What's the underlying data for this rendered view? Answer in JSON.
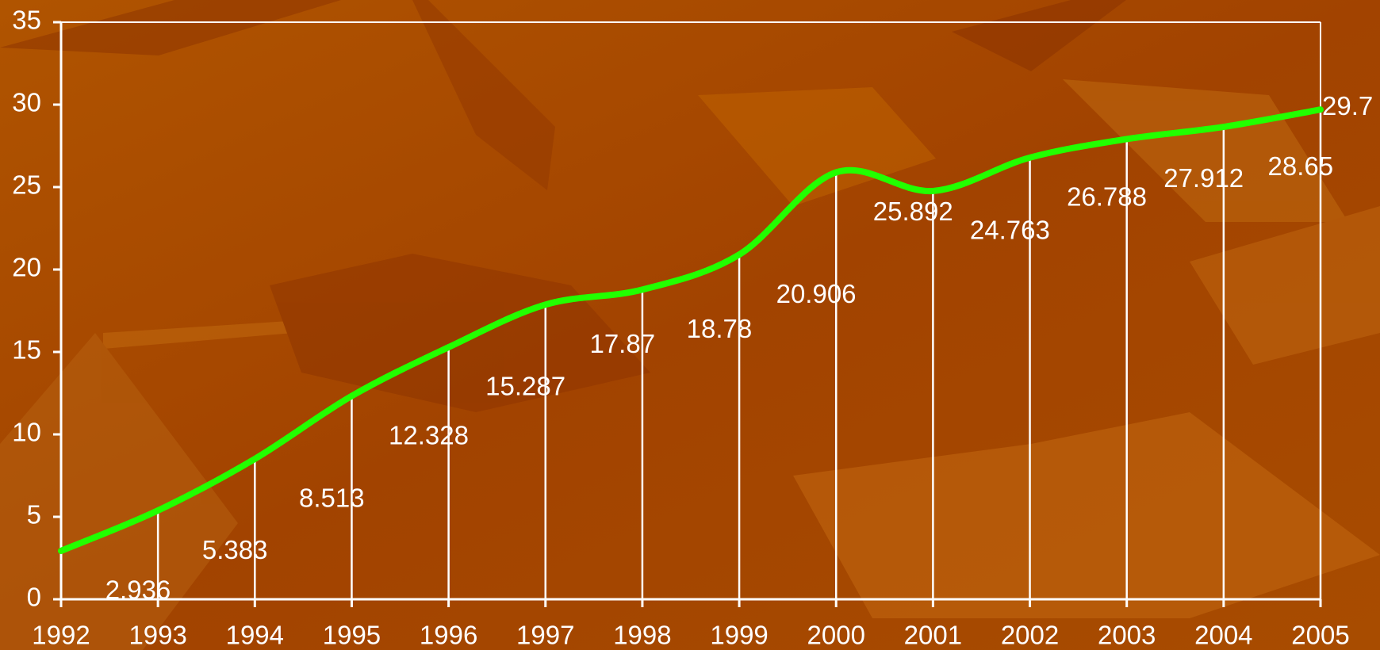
{
  "chart_data": {
    "type": "line",
    "categories": [
      "1992",
      "1993",
      "1994",
      "1995",
      "1996",
      "1997",
      "1998",
      "1999",
      "2000",
      "2001",
      "2002",
      "2003",
      "2004",
      "2005"
    ],
    "values": [
      2.936,
      5.383,
      8.513,
      12.328,
      15.287,
      17.87,
      18.78,
      20.906,
      25.892,
      24.763,
      26.788,
      27.912,
      28.65,
      29.7
    ],
    "color": "#22ff00",
    "ylim": [
      0,
      35
    ],
    "yticks": [
      0,
      5,
      10,
      15,
      20,
      25,
      30,
      35
    ]
  }
}
